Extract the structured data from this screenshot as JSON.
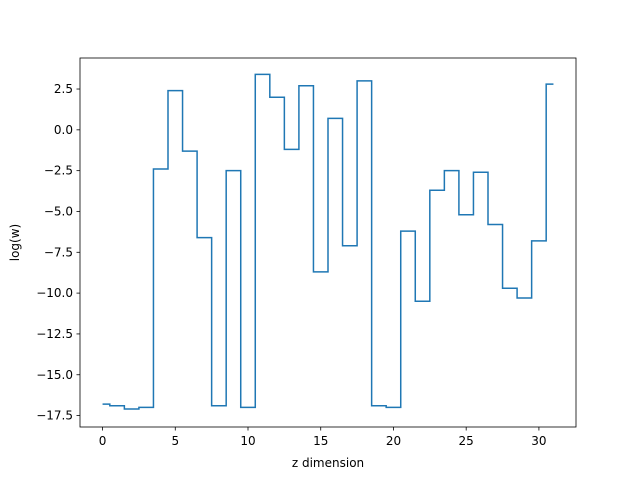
{
  "chart_data": {
    "type": "line",
    "drawstyle": "steps-mid",
    "title": "",
    "xlabel": "z dimension",
    "ylabel": "log(w)",
    "xlim": [
      -1.55,
      32.55
    ],
    "ylim": [
      -18.2,
      4.4
    ],
    "xticks": [
      0,
      5,
      10,
      15,
      20,
      25,
      30
    ],
    "xtick_labels": [
      "0",
      "5",
      "10",
      "15",
      "20",
      "25",
      "30"
    ],
    "yticks": [
      2.5,
      0.0,
      -2.5,
      -5.0,
      -7.5,
      -10.0,
      -12.5,
      -15.0,
      -17.5
    ],
    "ytick_labels": [
      "2.5",
      "0.0",
      "−2.5",
      "−5.0",
      "−7.5",
      "−10.0",
      "−12.5",
      "−15.0",
      "−17.5"
    ],
    "grid": false,
    "legend": "none",
    "series": [
      {
        "color": "#1f77b4",
        "x": [
          0,
          1,
          2,
          3,
          4,
          5,
          6,
          7,
          8,
          9,
          10,
          11,
          12,
          13,
          14,
          15,
          16,
          17,
          18,
          19,
          20,
          21,
          22,
          23,
          24,
          25,
          26,
          27,
          28,
          29,
          30,
          31
        ],
        "values": [
          -16.8,
          -16.9,
          -17.1,
          -17.0,
          -2.4,
          2.4,
          -1.3,
          -6.6,
          -16.9,
          -2.5,
          -17.0,
          3.4,
          2.0,
          -1.2,
          2.7,
          -8.7,
          0.7,
          -7.1,
          3.0,
          -16.9,
          -17.0,
          -6.2,
          -10.5,
          -3.7,
          -2.5,
          -5.2,
          -2.6,
          -5.8,
          -9.7,
          -10.3,
          -6.8,
          2.8
        ]
      }
    ]
  }
}
